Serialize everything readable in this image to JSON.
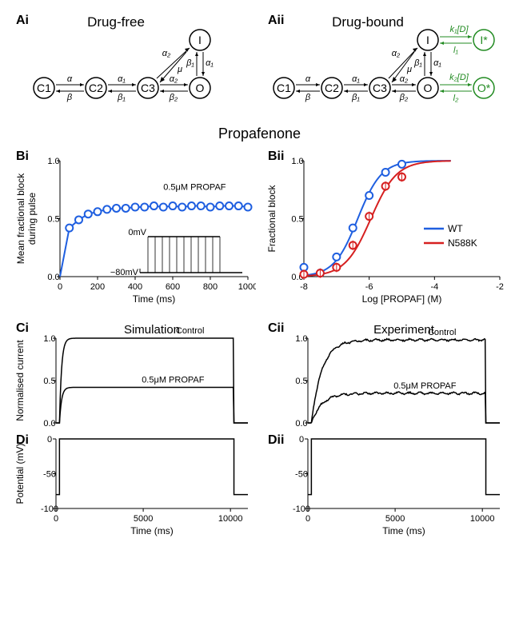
{
  "panelA": {
    "left": {
      "label": "Ai",
      "title": "Drug-free"
    },
    "right": {
      "label": "Aii",
      "title": "Drug-bound"
    },
    "states": [
      "C1",
      "C2",
      "C3",
      "O",
      "I",
      "I*",
      "O*"
    ],
    "rates": {
      "c1c2_f": "α",
      "c1c2_b": "β",
      "c2c3_f": "α₁",
      "c2c3_b": "β₁",
      "c3o_f": "α₂",
      "c3o_b": "β₂",
      "c3i_f": "α₂",
      "c3i_b": "μ",
      "oi_f": "β₁",
      "oi_b": "α₁",
      "iis_f": "k₁[D]",
      "iis_b": "l₁",
      "oos_f": "k₂[D]",
      "oos_b": "l₂"
    }
  },
  "titleB": "Propafenone",
  "panelBi": {
    "label": "Bi",
    "ylabel": "Mean fractional block\nduring pulse",
    "xlabel": "Time (ms)",
    "annot": "0.5μM PROPAF",
    "inset_top": "0mV",
    "inset_bottom": "−80mV",
    "xlim": [
      0,
      1000
    ],
    "xticks": [
      0,
      200,
      400,
      600,
      800,
      1000
    ],
    "ylim": [
      0,
      1.0
    ],
    "yticks": [
      0.0,
      0.5,
      1.0
    ],
    "color": "#1f5fe0",
    "data_x": [
      0,
      50,
      100,
      150,
      200,
      250,
      300,
      350,
      400,
      450,
      500,
      550,
      600,
      650,
      700,
      750,
      800,
      850,
      900,
      950,
      1000
    ],
    "data_y": [
      0,
      0.42,
      0.49,
      0.54,
      0.56,
      0.58,
      0.59,
      0.59,
      0.6,
      0.6,
      0.61,
      0.6,
      0.61,
      0.6,
      0.61,
      0.61,
      0.6,
      0.61,
      0.61,
      0.61,
      0.6
    ]
  },
  "panelBii": {
    "label": "Bii",
    "ylabel": "Fractional block",
    "xlabel": "Log [PROPAF] (M)",
    "xlim": [
      -8,
      -2
    ],
    "xticks": [
      -8,
      -6,
      -4,
      -2
    ],
    "ylim": [
      0,
      1.0
    ],
    "yticks": [
      0.0,
      0.5,
      1.0
    ],
    "legend": [
      {
        "label": "WT",
        "color": "#1f5fe0"
      },
      {
        "label": "N588K",
        "color": "#d62020"
      }
    ],
    "curve_wt_color": "#1f5fe0",
    "curve_n588k_color": "#d62020",
    "wt_points": [
      [
        -8,
        0.08
      ],
      [
        -7.5,
        0.03
      ],
      [
        -7,
        0.17
      ],
      [
        -6.5,
        0.42
      ],
      [
        -6,
        0.7
      ],
      [
        -5.5,
        0.9
      ],
      [
        -5,
        0.97
      ]
    ],
    "n588k_points": [
      [
        -8,
        0.02
      ],
      [
        -7.5,
        0.03
      ],
      [
        -7,
        0.08
      ],
      [
        -6.5,
        0.27
      ],
      [
        -6,
        0.52
      ],
      [
        -5.5,
        0.78
      ],
      [
        -5,
        0.86
      ]
    ],
    "wt_hill": {
      "logIC50": -6.35,
      "n": 1.2
    },
    "n588k_hill": {
      "logIC50": -5.95,
      "n": 1.1
    }
  },
  "panelC": {
    "left": {
      "label": "Ci",
      "title": "Simulation"
    },
    "right": {
      "label": "Cii",
      "title": "Experiment"
    },
    "ylabel": "Normalised current",
    "ylim": [
      0,
      1.0
    ],
    "yticks": [
      0.0,
      0.5,
      1.0
    ],
    "xlim": [
      0,
      11000
    ],
    "annot_control": "Control",
    "annot_drug": "0.5μM PROPAF",
    "sim_control_level": 1.0,
    "sim_drug_level": 0.42,
    "exp_control_level": 0.98,
    "exp_drug_level": 0.35
  },
  "panelD": {
    "left": {
      "label": "Di"
    },
    "right": {
      "label": "Dii"
    },
    "ylabel": "Potential (mV)",
    "xlabel": "Time (ms)",
    "ylim": [
      -100,
      0
    ],
    "yticks": [
      -100,
      -50,
      0
    ],
    "xlim": [
      0,
      11000
    ],
    "xticks": [
      0,
      5000,
      10000
    ],
    "hold_mV": -80,
    "step_mV": 0,
    "step_start": 200,
    "step_end": 10200
  },
  "colors": {
    "green": "#228B22",
    "blue": "#1f5fe0",
    "red": "#d62020",
    "black": "#000000"
  }
}
